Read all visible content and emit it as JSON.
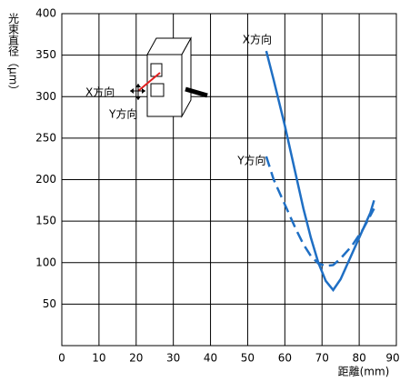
{
  "chart_data": {
    "type": "line",
    "y_label": "光束直径（μm）",
    "x_label": "距離(mm)",
    "annotations": [
      "X方向",
      "Y方向"
    ],
    "xlim": [
      0,
      90
    ],
    "xticks": [
      0,
      10,
      20,
      30,
      40,
      50,
      60,
      70,
      80,
      90
    ],
    "ylim": [
      0,
      400
    ],
    "yticks": [
      50,
      100,
      150,
      200,
      250,
      300,
      350,
      400
    ],
    "grid": true,
    "series": [
      {
        "name": "X方向",
        "color": "#1f6fc4",
        "dash": false,
        "x": [
          55,
          57,
          60,
          63,
          65,
          67,
          69,
          71,
          73,
          75,
          77,
          80,
          83,
          84
        ],
        "values": [
          355,
          320,
          265,
          205,
          165,
          130,
          100,
          78,
          67,
          80,
          100,
          130,
          160,
          175
        ]
      },
      {
        "name": "Y方向",
        "color": "#1f6fc4",
        "dash": true,
        "x": [
          55,
          57,
          60,
          63,
          65,
          67,
          69,
          71,
          73,
          75,
          78,
          81,
          84
        ],
        "values": [
          228,
          200,
          170,
          140,
          122,
          108,
          99,
          96,
          97,
          105,
          120,
          140,
          165
        ]
      }
    ]
  }
}
